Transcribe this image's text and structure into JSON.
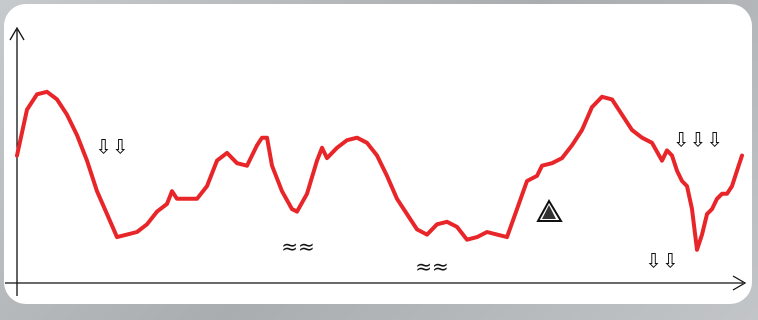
{
  "chart_data": {
    "type": "line",
    "x": [
      0,
      10,
      20,
      30,
      40,
      50,
      60,
      70,
      80,
      90,
      100,
      110,
      120,
      130,
      140,
      150,
      155,
      160,
      170,
      180,
      190,
      200,
      210,
      220,
      230,
      240,
      245,
      250,
      255,
      265,
      275,
      280,
      290,
      300,
      305,
      310,
      320,
      330,
      340,
      350,
      360,
      370,
      380,
      390,
      400,
      410,
      420,
      430,
      440,
      450,
      460,
      470,
      480,
      490,
      500,
      510,
      520,
      525,
      535,
      545,
      555,
      565,
      575,
      585,
      595,
      605,
      615,
      625,
      635,
      645,
      650,
      655,
      660,
      665,
      670,
      675,
      680,
      685,
      690,
      695,
      700,
      705,
      710,
      715,
      720,
      725
    ],
    "series": [
      {
        "color": "#e8262a",
        "values": [
          50,
          68,
          74,
          75,
          72,
          66,
          58,
          48,
          36,
          27,
          18,
          19,
          20,
          23,
          28,
          31,
          36,
          33,
          33,
          33,
          38,
          48,
          51,
          47,
          46,
          54,
          57,
          57,
          46,
          36,
          29,
          28,
          35,
          48,
          53,
          49,
          53,
          56,
          57,
          55,
          50,
          42,
          33,
          27,
          21,
          19,
          23,
          24,
          22,
          17,
          18,
          20,
          19,
          18,
          29,
          40,
          42,
          46,
          47,
          49,
          54,
          60,
          69,
          73,
          72,
          66,
          60,
          57,
          55,
          48,
          52,
          50,
          44,
          40,
          38,
          29,
          13,
          19,
          27,
          29,
          33,
          35,
          35,
          38,
          44,
          50
        ]
      }
    ],
    "xlim": [
      0,
      725
    ],
    "ylim": [
      0,
      100
    ],
    "annotations": [
      "⇩⇩",
      "⇩⇩⇩",
      "⇩⇩",
      "≈≈",
      "≈≈"
    ]
  }
}
